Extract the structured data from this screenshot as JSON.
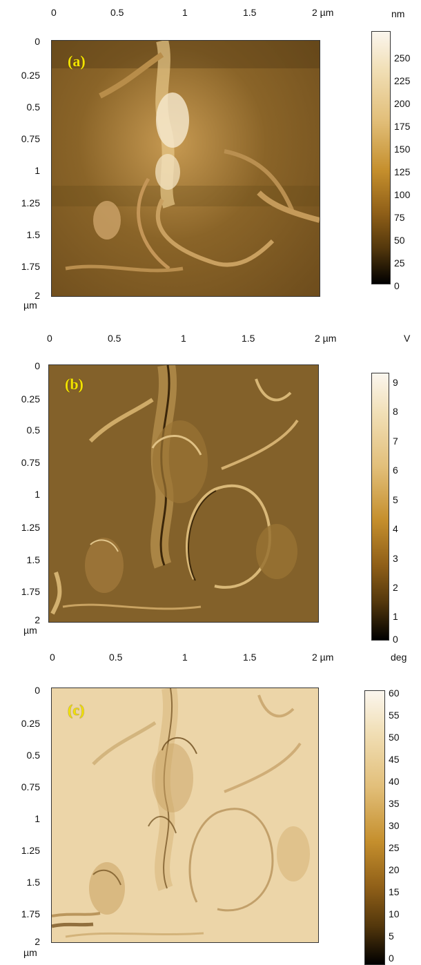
{
  "panels": [
    {
      "tag": "(a)",
      "x_ticks": [
        "0",
        "0.5",
        "1",
        "1.5",
        "2 µm"
      ],
      "y_ticks": [
        "0",
        "0.25",
        "0.5",
        "0.75",
        "1",
        "1.25",
        "1.5",
        "1.75",
        "2"
      ],
      "y_unit": "µm",
      "colorbar_unit": "nm",
      "colorbar_ticks": [
        "250",
        "225",
        "200",
        "175",
        "150",
        "125",
        "100",
        "75",
        "50",
        "25",
        "0"
      ],
      "colors": {
        "bg": "#8a6428",
        "dark": "#2e1c06",
        "light": "#f6ead0"
      }
    },
    {
      "tag": "(b)",
      "x_ticks": [
        "0",
        "0.5",
        "1",
        "1.5",
        "2 µm"
      ],
      "y_ticks": [
        "0",
        "0.25",
        "0.5",
        "0.75",
        "1",
        "1.25",
        "1.5",
        "1.75",
        "2"
      ],
      "y_unit": "µm",
      "colorbar_unit": "V",
      "colorbar_ticks": [
        "9",
        "8",
        "7",
        "6",
        "5",
        "4",
        "3",
        "2",
        "1",
        "0"
      ],
      "colors": {
        "bg": "#83612a",
        "dark": "#3a2608",
        "light": "#e9cf96"
      }
    },
    {
      "tag": "(c)",
      "x_ticks": [
        "0",
        "0.5",
        "1",
        "1.5",
        "2 µm"
      ],
      "y_ticks": [
        "0",
        "0.25",
        "0.5",
        "0.75",
        "1",
        "1.25",
        "1.5",
        "1.75",
        "2"
      ],
      "y_unit": "µm",
      "colorbar_unit": "deg",
      "colorbar_ticks": [
        "60",
        "55",
        "50",
        "45",
        "40",
        "35",
        "30",
        "25",
        "20",
        "15",
        "10",
        "5",
        "0"
      ],
      "colors": {
        "bg": "#ecd5a8",
        "dark": "#6b4a1a",
        "light": "#fbf3e2"
      }
    }
  ]
}
